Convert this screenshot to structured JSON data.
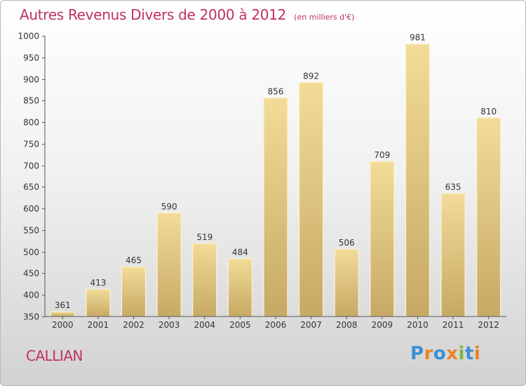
{
  "header": {
    "title": "Autres Revenus Divers de 2000 à 2012",
    "subtitle": "(en milliers d'€)"
  },
  "footer": {
    "commune": "CALLIAN",
    "logo_text": "Proxiti"
  },
  "colors": {
    "title": "#c0315f",
    "bar_light": "#f2dc98",
    "bar_dark": "#c6a964",
    "logo": [
      "#3b8fd6",
      "#e8842b",
      "#3b8fd6",
      "#e8842b",
      "#7bb342",
      "#3b8fd6",
      "#e8842b"
    ]
  },
  "chart_data": {
    "type": "bar",
    "categories": [
      "2000",
      "2001",
      "2002",
      "2003",
      "2004",
      "2005",
      "2006",
      "2007",
      "2008",
      "2009",
      "2010",
      "2011",
      "2012"
    ],
    "values": [
      361,
      413,
      465,
      590,
      519,
      484,
      856,
      892,
      506,
      709,
      981,
      635,
      810
    ],
    "ylim": [
      350,
      1000
    ],
    "yticks": [
      350,
      400,
      450,
      500,
      550,
      600,
      650,
      700,
      750,
      800,
      850,
      900,
      950,
      1000
    ],
    "grid": false
  }
}
